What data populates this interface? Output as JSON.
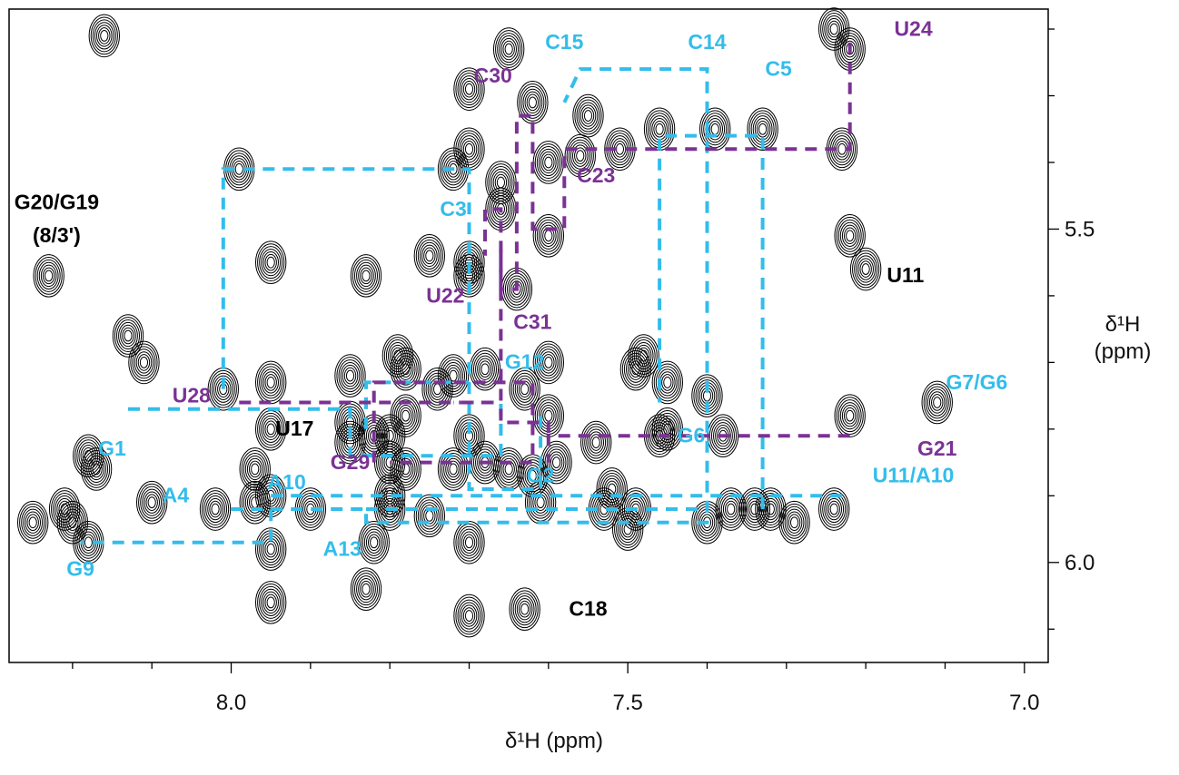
{
  "chart_data": {
    "type": "contour",
    "xlabel": "δ¹H (ppm)",
    "ylabel_line1": "δ¹H",
    "ylabel_line2": "(ppm)",
    "x_range": [
      8.28,
      6.97
    ],
    "y_range": [
      5.17,
      6.15
    ],
    "x_ticks": [
      "8.0",
      "7.5",
      "7.0"
    ],
    "x_tick_values": [
      8.0,
      7.5,
      7.0
    ],
    "y_ticks": [
      "5.5",
      "6.0"
    ],
    "y_tick_values": [
      5.5,
      6.0
    ],
    "colors": {
      "ink": "#000000",
      "blue": "#33bdeb",
      "purple": "#7b3294"
    },
    "peaks": [
      [
        7.65,
        5.23
      ],
      [
        7.7,
        5.29
      ],
      [
        7.7,
        5.38
      ],
      [
        7.62,
        5.31
      ],
      [
        7.55,
        5.33
      ],
      [
        7.46,
        5.35
      ],
      [
        7.39,
        5.35
      ],
      [
        7.33,
        5.35
      ],
      [
        7.23,
        5.38
      ],
      [
        7.22,
        5.23
      ],
      [
        7.99,
        5.41
      ],
      [
        7.72,
        5.41
      ],
      [
        7.66,
        5.47
      ],
      [
        7.6,
        5.51
      ],
      [
        7.64,
        5.59
      ],
      [
        7.7,
        5.55
      ],
      [
        7.66,
        5.43
      ],
      [
        7.6,
        5.4
      ],
      [
        7.56,
        5.39
      ],
      [
        7.51,
        5.38
      ],
      [
        8.23,
        5.57
      ],
      [
        7.95,
        5.55
      ],
      [
        7.83,
        5.57
      ],
      [
        7.7,
        5.57
      ],
      [
        7.75,
        5.54
      ],
      [
        7.22,
        5.51
      ],
      [
        7.2,
        5.56
      ],
      [
        8.13,
        5.66
      ],
      [
        8.11,
        5.7
      ],
      [
        7.79,
        5.69
      ],
      [
        7.85,
        5.72
      ],
      [
        7.78,
        5.71
      ],
      [
        7.72,
        5.72
      ],
      [
        7.68,
        5.71
      ],
      [
        7.63,
        5.74
      ],
      [
        7.6,
        5.7
      ],
      [
        7.48,
        5.69
      ],
      [
        7.49,
        5.71
      ],
      [
        7.45,
        5.73
      ],
      [
        7.95,
        5.73
      ],
      [
        8.01,
        5.74
      ],
      [
        7.22,
        5.78
      ],
      [
        7.74,
        5.74
      ],
      [
        7.78,
        5.78
      ],
      [
        7.7,
        5.81
      ],
      [
        7.68,
        5.85
      ],
      [
        7.62,
        5.87
      ],
      [
        7.59,
        5.85
      ],
      [
        7.95,
        5.8
      ],
      [
        7.82,
        5.81
      ],
      [
        7.54,
        5.82
      ],
      [
        7.38,
        5.81
      ],
      [
        8.18,
        5.84
      ],
      [
        8.17,
        5.86
      ],
      [
        7.97,
        5.86
      ],
      [
        8.02,
        5.92
      ],
      [
        7.97,
        5.91
      ],
      [
        7.95,
        5.9
      ],
      [
        7.8,
        5.9
      ],
      [
        7.8,
        5.92
      ],
      [
        7.61,
        5.91
      ],
      [
        7.52,
        5.89
      ],
      [
        7.4,
        5.94
      ],
      [
        7.37,
        5.92
      ],
      [
        7.32,
        5.92
      ],
      [
        8.25,
        5.94
      ],
      [
        8.21,
        5.92
      ],
      [
        8.2,
        5.94
      ],
      [
        7.95,
        5.98
      ],
      [
        7.75,
        5.93
      ],
      [
        7.82,
        5.97
      ],
      [
        7.7,
        5.97
      ],
      [
        7.5,
        5.95
      ],
      [
        7.34,
        5.92
      ],
      [
        7.29,
        5.94
      ],
      [
        7.24,
        5.92
      ],
      [
        8.1,
        5.91
      ],
      [
        7.9,
        5.92
      ],
      [
        8.18,
        5.97
      ],
      [
        7.95,
        6.06
      ],
      [
        7.83,
        6.04
      ],
      [
        7.63,
        6.07
      ],
      [
        7.7,
        6.08
      ],
      [
        8.16,
        5.21
      ],
      [
        7.24,
        5.2
      ],
      [
        7.11,
        5.76
      ],
      [
        7.8,
        5.81
      ],
      [
        7.85,
        5.79
      ],
      [
        7.65,
        5.86
      ],
      [
        7.46,
        5.81
      ],
      [
        7.45,
        5.8
      ],
      [
        7.4,
        5.75
      ],
      [
        7.53,
        5.92
      ],
      [
        7.49,
        5.92
      ],
      [
        7.6,
        5.78
      ],
      [
        7.85,
        5.82
      ],
      [
        7.72,
        5.86
      ],
      [
        7.78,
        5.86
      ],
      [
        7.8,
        5.85
      ]
    ],
    "walks_blue": [
      [
        [
          8.13,
          5.77
        ],
        [
          7.85,
          5.77
        ],
        [
          7.85,
          5.84
        ],
        [
          7.66,
          5.84
        ],
        [
          7.66,
          5.76
        ],
        [
          7.72,
          5.76
        ]
      ],
      [
        [
          8.01,
          5.74
        ],
        [
          8.01,
          5.41
        ],
        [
          7.7,
          5.41
        ],
        [
          7.7,
          5.89
        ],
        [
          7.61,
          5.89
        ],
        [
          7.61,
          5.78
        ]
      ],
      [
        [
          8.0,
          5.92
        ],
        [
          7.95,
          5.92
        ],
        [
          7.95,
          5.97
        ],
        [
          8.19,
          5.97
        ]
      ],
      [
        [
          7.95,
          5.9
        ],
        [
          7.23,
          5.9
        ]
      ],
      [
        [
          7.95,
          5.92
        ],
        [
          7.83,
          5.92
        ],
        [
          7.83,
          5.94
        ],
        [
          7.4,
          5.94
        ],
        [
          7.4,
          5.26
        ],
        [
          7.56,
          5.26
        ],
        [
          7.58,
          5.31
        ]
      ],
      [
        [
          7.83,
          5.92
        ],
        [
          7.6,
          5.92
        ],
        [
          7.4,
          5.92
        ]
      ],
      [
        [
          7.33,
          5.92
        ],
        [
          7.33,
          5.36
        ],
        [
          7.46,
          5.36
        ],
        [
          7.46,
          5.76
        ]
      ],
      [
        [
          7.83,
          5.8
        ],
        [
          7.83,
          5.73
        ],
        [
          7.7,
          5.73
        ]
      ]
    ],
    "walks_purple": [
      [
        [
          7.22,
          5.22
        ],
        [
          7.22,
          5.38
        ],
        [
          7.58,
          5.38
        ],
        [
          7.58,
          5.5
        ],
        [
          7.62,
          5.5
        ],
        [
          7.62,
          5.33
        ],
        [
          7.64,
          5.33
        ],
        [
          7.64,
          5.59
        ],
        [
          7.66,
          5.59
        ],
        [
          7.66,
          5.47
        ],
        [
          7.68,
          5.47
        ],
        [
          7.68,
          5.54
        ]
      ],
      [
        [
          7.99,
          5.76
        ],
        [
          7.71,
          5.76
        ]
      ],
      [
        [
          7.66,
          5.53
        ],
        [
          7.66,
          5.79
        ],
        [
          7.6,
          5.79
        ],
        [
          7.6,
          5.81
        ]
      ],
      [
        [
          7.22,
          5.81
        ],
        [
          7.6,
          5.81
        ],
        [
          7.6,
          5.85
        ]
      ],
      [
        [
          7.82,
          5.85
        ],
        [
          7.82,
          5.73
        ],
        [
          7.62,
          5.73
        ],
        [
          7.62,
          5.85
        ],
        [
          7.8,
          5.85
        ]
      ],
      [
        [
          7.71,
          5.76
        ],
        [
          7.66,
          5.76
        ]
      ]
    ],
    "labels_blue": [
      {
        "text": "C15",
        "x": 7.58,
        "y": 5.23
      },
      {
        "text": "C14",
        "x": 7.4,
        "y": 5.23
      },
      {
        "text": "C5",
        "x": 7.31,
        "y": 5.27
      },
      {
        "text": "C3",
        "x": 7.72,
        "y": 5.48
      },
      {
        "text": "G12",
        "x": 7.63,
        "y": 5.71
      },
      {
        "text": "G7/G6",
        "x": 7.06,
        "y": 5.74
      },
      {
        "text": "G6",
        "x": 7.42,
        "y": 5.82
      },
      {
        "text": "G1",
        "x": 8.15,
        "y": 5.84
      },
      {
        "text": "A4",
        "x": 8.07,
        "y": 5.91
      },
      {
        "text": "A10",
        "x": 7.93,
        "y": 5.89
      },
      {
        "text": "G2",
        "x": 7.61,
        "y": 5.88
      },
      {
        "text": "U11/A10",
        "x": 7.14,
        "y": 5.88
      },
      {
        "text": "A13",
        "x": 7.86,
        "y": 5.99
      },
      {
        "text": "G9",
        "x": 8.19,
        "y": 6.02
      }
    ],
    "labels_purple": [
      {
        "text": "U24",
        "x": 7.14,
        "y": 5.21
      },
      {
        "text": "C30",
        "x": 7.67,
        "y": 5.28
      },
      {
        "text": "C23",
        "x": 7.54,
        "y": 5.43
      },
      {
        "text": "U22",
        "x": 7.73,
        "y": 5.61
      },
      {
        "text": "C31",
        "x": 7.62,
        "y": 5.65
      },
      {
        "text": "U28",
        "x": 8.05,
        "y": 5.76
      },
      {
        "text": "G21",
        "x": 7.11,
        "y": 5.84
      },
      {
        "text": "G29",
        "x": 7.85,
        "y": 5.86
      }
    ],
    "labels_black": [
      {
        "text": "G20/G19",
        "x": 8.22,
        "y": 5.47
      },
      {
        "text": "(8/3')",
        "x": 8.22,
        "y": 5.52
      },
      {
        "text": "U11",
        "x": 7.15,
        "y": 5.58
      },
      {
        "text": "U17",
        "x": 7.92,
        "y": 5.81
      },
      {
        "text": "C18",
        "x": 7.55,
        "y": 6.08
      }
    ]
  }
}
